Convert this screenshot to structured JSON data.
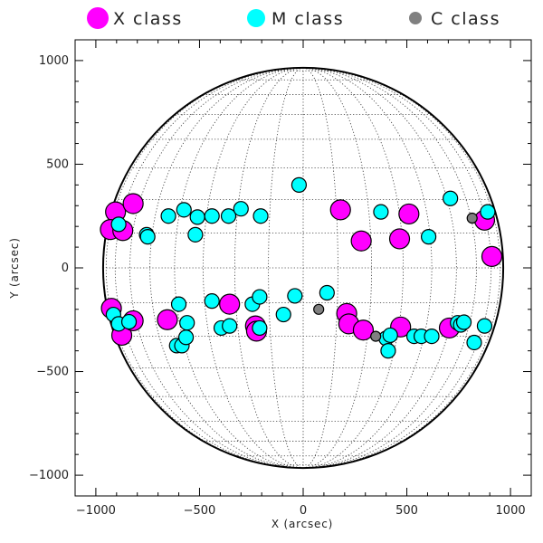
{
  "chart_data": {
    "type": "scatter",
    "title": "",
    "xlabel": "X (arcsec)",
    "ylabel": "Y (arcsec)",
    "xlim": [
      -1100,
      1100
    ],
    "ylim": [
      -1100,
      1100
    ],
    "xticks": [
      -1000,
      -500,
      0,
      500,
      1000
    ],
    "yticks": [
      -1000,
      -500,
      0,
      500,
      1000
    ],
    "xtick_labels": [
      "−1000",
      "−500",
      "0",
      "500",
      "1000"
    ],
    "ytick_labels": [
      "−1000",
      "−500",
      "0",
      "500",
      "1000"
    ],
    "solar_radius_arcsec": 965,
    "grid": "heliographic latitude/longitude grid, dotted",
    "legend_position": "top",
    "legend": [
      {
        "label": "X class",
        "color": "#ff00ff"
      },
      {
        "label": "M class",
        "color": "#00ffff"
      },
      {
        "label": "C class",
        "color": "#808080"
      }
    ],
    "series": [
      {
        "name": "X class",
        "color": "#ff00ff",
        "points": [
          [
            -905,
            270
          ],
          [
            -930,
            185
          ],
          [
            -870,
            180
          ],
          [
            -820,
            310
          ],
          [
            -925,
            -195
          ],
          [
            -875,
            -325
          ],
          [
            -820,
            -255
          ],
          [
            -655,
            -250
          ],
          [
            -355,
            -175
          ],
          [
            -230,
            -280
          ],
          [
            -225,
            -305
          ],
          [
            180,
            280
          ],
          [
            280,
            130
          ],
          [
            510,
            260
          ],
          [
            465,
            140
          ],
          [
            875,
            230
          ],
          [
            910,
            55
          ],
          [
            210,
            -220
          ],
          [
            220,
            -270
          ],
          [
            290,
            -300
          ],
          [
            470,
            -285
          ],
          [
            705,
            -290
          ]
        ]
      },
      {
        "name": "M class",
        "color": "#00ffff",
        "points": [
          [
            -890,
            210
          ],
          [
            -755,
            160
          ],
          [
            -750,
            150
          ],
          [
            -650,
            250
          ],
          [
            -575,
            280
          ],
          [
            -510,
            245
          ],
          [
            -440,
            250
          ],
          [
            -360,
            250
          ],
          [
            -300,
            285
          ],
          [
            -205,
            250
          ],
          [
            -520,
            160
          ],
          [
            -20,
            400
          ],
          [
            375,
            270
          ],
          [
            605,
            150
          ],
          [
            710,
            335
          ],
          [
            890,
            270
          ],
          [
            -915,
            -225
          ],
          [
            -890,
            -270
          ],
          [
            -840,
            -260
          ],
          [
            -600,
            -175
          ],
          [
            -560,
            -265
          ],
          [
            -610,
            -375
          ],
          [
            -585,
            -375
          ],
          [
            -565,
            -335
          ],
          [
            -440,
            -160
          ],
          [
            -395,
            -290
          ],
          [
            -355,
            -280
          ],
          [
            -245,
            -175
          ],
          [
            -210,
            -140
          ],
          [
            -210,
            -290
          ],
          [
            -95,
            -225
          ],
          [
            -40,
            -135
          ],
          [
            115,
            -120
          ],
          [
            400,
            -340
          ],
          [
            420,
            -325
          ],
          [
            410,
            -400
          ],
          [
            535,
            -330
          ],
          [
            570,
            -330
          ],
          [
            620,
            -330
          ],
          [
            745,
            -265
          ],
          [
            760,
            -275
          ],
          [
            775,
            -262
          ],
          [
            825,
            -360
          ],
          [
            875,
            -280
          ]
        ]
      },
      {
        "name": "C class",
        "color": "#808080",
        "points": [
          [
            75,
            -200
          ],
          [
            350,
            -330
          ],
          [
            815,
            240
          ]
        ]
      }
    ]
  }
}
